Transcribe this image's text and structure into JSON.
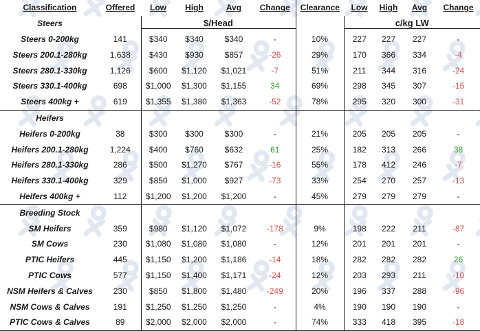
{
  "headers": [
    "Classification",
    "Offered",
    "Low",
    "High",
    "Avg",
    "Change",
    "Clearance",
    "Low",
    "High",
    "Avg",
    "Change"
  ],
  "units": {
    "head": "$/Head",
    "lw": "c/kg LW"
  },
  "sections": [
    {
      "name": "Steers",
      "rows": [
        {
          "c": "Steers 0-200kg",
          "off": "141",
          "low": "$340",
          "high": "$340",
          "avg": "$340",
          "chg": "-",
          "clr": "10%",
          "low2": "227",
          "high2": "227",
          "avg2": "227",
          "chg2": "-"
        },
        {
          "c": "Steers 200.1-280kg",
          "off": "1,638",
          "low": "$430",
          "high": "$930",
          "avg": "$857",
          "chg": "-26",
          "clr": "29%",
          "low2": "170",
          "high2": "366",
          "avg2": "334",
          "chg2": "-4"
        },
        {
          "c": "Steers 280.1-330kg",
          "off": "1,126",
          "low": "$600",
          "high": "$1,120",
          "avg": "$1,021",
          "chg": "-7",
          "clr": "51%",
          "low2": "211",
          "high2": "344",
          "avg2": "316",
          "chg2": "-24"
        },
        {
          "c": "Steers 330.1-400kg",
          "off": "698",
          "low": "$1,000",
          "high": "$1,300",
          "avg": "$1,155",
          "chg": "34",
          "clr": "69%",
          "low2": "298",
          "high2": "345",
          "avg2": "307",
          "chg2": "-15"
        },
        {
          "c": "Steers 400kg +",
          "off": "619",
          "low": "$1,355",
          "high": "$1,380",
          "avg": "$1,363",
          "chg": "-52",
          "clr": "78%",
          "low2": "295",
          "high2": "320",
          "avg2": "300",
          "chg2": "-31"
        }
      ]
    },
    {
      "name": "Heifers",
      "rows": [
        {
          "c": "Heifers 0-200kg",
          "off": "38",
          "low": "$300",
          "high": "$300",
          "avg": "$300",
          "chg": "-",
          "clr": "21%",
          "low2": "205",
          "high2": "205",
          "avg2": "205",
          "chg2": "-"
        },
        {
          "c": "Heifers 200.1-280kg",
          "off": "1,224",
          "low": "$400",
          "high": "$760",
          "avg": "$632",
          "chg": "61",
          "clr": "25%",
          "low2": "182",
          "high2": "313",
          "avg2": "266",
          "chg2": "38"
        },
        {
          "c": "Heifers 280.1-330kg",
          "off": "286",
          "low": "$500",
          "high": "$1,270",
          "avg": "$767",
          "chg": "-16",
          "clr": "55%",
          "low2": "178",
          "high2": "412",
          "avg2": "246",
          "chg2": "-7"
        },
        {
          "c": "Heifers 330.1-400kg",
          "off": "329",
          "low": "$850",
          "high": "$1,000",
          "avg": "$927",
          "chg": "-73",
          "clr": "33%",
          "low2": "254",
          "high2": "270",
          "avg2": "257",
          "chg2": "-13"
        },
        {
          "c": "Heifers 400kg +",
          "off": "112",
          "low": "$1,200",
          "high": "$1,200",
          "avg": "$1,200",
          "chg": "-",
          "clr": "45%",
          "low2": "279",
          "high2": "279",
          "avg2": "279",
          "chg2": "-"
        }
      ]
    },
    {
      "name": "Breeding Stock",
      "rows": [
        {
          "c": "SM Heifers",
          "off": "359",
          "low": "$980",
          "high": "$1,120",
          "avg": "$1,072",
          "chg": "-178",
          "clr": "9%",
          "low2": "198",
          "high2": "222",
          "avg2": "211",
          "chg2": "-87"
        },
        {
          "c": "SM Cows",
          "off": "230",
          "low": "$1,080",
          "high": "$1,080",
          "avg": "$1,080",
          "chg": "-",
          "clr": "12%",
          "low2": "201",
          "high2": "201",
          "avg2": "201",
          "chg2": "-"
        },
        {
          "c": "PTIC Heifers",
          "off": "445",
          "low": "$1,150",
          "high": "$1,200",
          "avg": "$1,186",
          "chg": "-14",
          "clr": "18%",
          "low2": "282",
          "high2": "282",
          "avg2": "282",
          "chg2": "26"
        },
        {
          "c": "PTIC Cows",
          "off": "577",
          "low": "$1,150",
          "high": "$1,400",
          "avg": "$1,171",
          "chg": "-24",
          "clr": "12%",
          "low2": "203",
          "high2": "293",
          "avg2": "211",
          "chg2": "-10"
        },
        {
          "c": "NSM Heifers & Calves",
          "off": "230",
          "low": "$850",
          "high": "$1,800",
          "avg": "$1,480",
          "chg": "-249",
          "clr": "20%",
          "low2": "196",
          "high2": "337",
          "avg2": "288",
          "chg2": "-96"
        },
        {
          "c": "NSM Cows & Calves",
          "off": "191",
          "low": "$1,250",
          "high": "$1,250",
          "avg": "$1,250",
          "chg": "-",
          "clr": "4%",
          "low2": "190",
          "high2": "190",
          "avg2": "190",
          "chg2": "-"
        },
        {
          "c": "PTIC Cows & Calves",
          "off": "89",
          "low": "$2,000",
          "high": "$2,000",
          "avg": "$2,000",
          "chg": "-",
          "clr": "74%",
          "low2": "333",
          "high2": "418",
          "avg2": "395",
          "chg2": "-18"
        }
      ]
    }
  ],
  "colors": {
    "negative": "#d9534f",
    "positive": "#2ca02c",
    "shade": "#f2f2f2",
    "watermark": "#c9d6e6"
  }
}
